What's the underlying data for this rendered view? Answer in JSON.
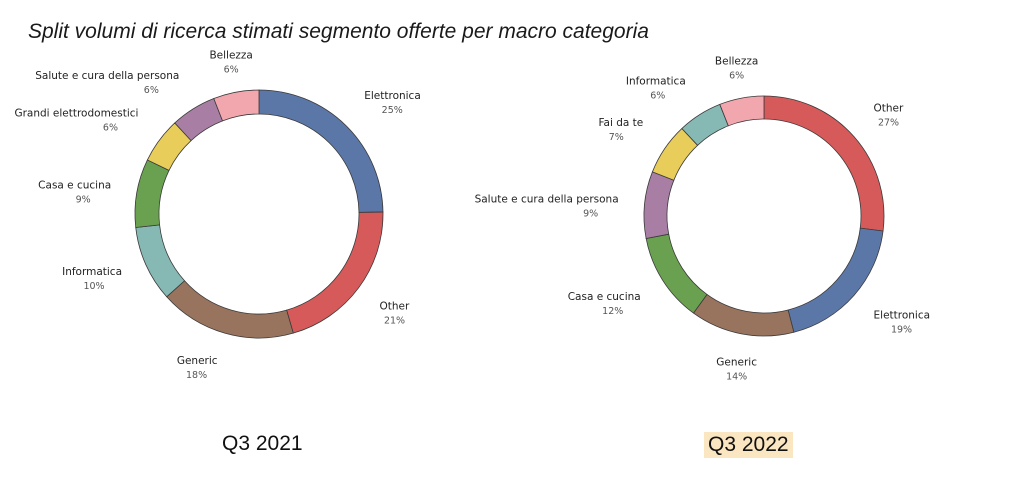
{
  "title": "Split volumi di ricerca stimati segmento offerte per macro categoria",
  "captions": {
    "left": "Q3 2021",
    "right": "Q3 2022",
    "right_highlight": "#fbe6c2"
  },
  "colors": {
    "Elettronica": "#5b77a8",
    "Other": "#d65a5a",
    "Generic": "#98735e",
    "Informatica": "#86b8b4",
    "Casa e cucina": "#6aa151",
    "Grandi elettrodomestici": "#e8cd5b",
    "Salute e cura della persona": "#a87ea4",
    "Bellezza": "#f2a7ae",
    "Fai da te": "#e8cd5b"
  },
  "chart_data": [
    {
      "type": "pie",
      "donut": true,
      "name": "Q3 2021",
      "slices": [
        {
          "label": "Elettronica",
          "value": 25,
          "display": "25%"
        },
        {
          "label": "Other",
          "value": 21,
          "display": "21%"
        },
        {
          "label": "Generic",
          "value": 18,
          "display": "18%"
        },
        {
          "label": "Informatica",
          "value": 10,
          "display": "10%"
        },
        {
          "label": "Casa e cucina",
          "value": 9,
          "display": "9%"
        },
        {
          "label": "Grandi elettrodomestici",
          "value": 6,
          "display": "6%"
        },
        {
          "label": "Salute e cura della persona",
          "value": 6,
          "display": "6%"
        },
        {
          "label": "Bellezza",
          "value": 6,
          "display": "6%"
        }
      ]
    },
    {
      "type": "pie",
      "donut": true,
      "name": "Q3 2022",
      "slices": [
        {
          "label": "Other",
          "value": 27,
          "display": "27%"
        },
        {
          "label": "Elettronica",
          "value": 19,
          "display": "19%"
        },
        {
          "label": "Generic",
          "value": 14,
          "display": "14%"
        },
        {
          "label": "Casa e cucina",
          "value": 12,
          "display": "12%"
        },
        {
          "label": "Salute e cura della persona",
          "value": 9,
          "display": "9%"
        },
        {
          "label": "Fai da te",
          "value": 7,
          "display": "7%"
        },
        {
          "label": "Informatica",
          "value": 6,
          "display": "6%"
        },
        {
          "label": "Bellezza",
          "value": 6,
          "display": "6%"
        }
      ]
    }
  ]
}
